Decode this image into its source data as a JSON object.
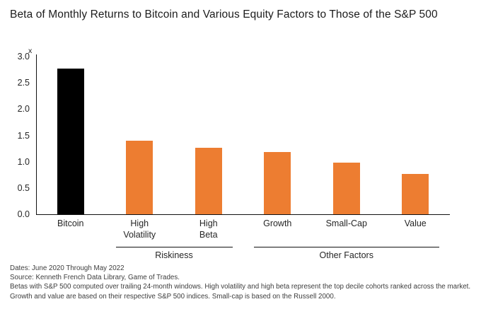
{
  "title": "Beta of Monthly Returns to Bitcoin and Various Equity Factors to Those of the S&P 500",
  "axis_top_label": "x",
  "footnotes": [
    "Dates: June 2020 Through May 2022",
    "Source: Kenneth French Data Library, Game of Trades.",
    "Betas with S&P 500 computed over trailing 24-month windows. High volatility and high beta represent the top decile cohorts ranked across the market. Growth and value are based on their respective S&P 500 indices. Small-cap is based on the Russell 2000."
  ],
  "colors": {
    "bitcoin_bar": "#000000",
    "factor_bar": "#ED7D31",
    "axis": "#111111",
    "text": "#262626",
    "footnote_text": "#3d3d3d"
  },
  "chart_data": {
    "type": "bar",
    "title": "Beta of Monthly Returns to Bitcoin and Various Equity Factors to Those of the S&P 500",
    "categories": [
      "Bitcoin",
      "High\nVolatility",
      "High\nBeta",
      "Growth",
      "Small-Cap",
      "Value"
    ],
    "values": [
      2.77,
      1.4,
      1.26,
      1.18,
      0.98,
      0.77
    ],
    "bar_colors": [
      "#000000",
      "#ED7D31",
      "#ED7D31",
      "#ED7D31",
      "#ED7D31",
      "#ED7D31"
    ],
    "xlabel": "",
    "ylabel": "",
    "ylim": [
      0,
      3.0
    ],
    "ytick_step": 0.5,
    "ytick_labels": [
      "0.0",
      "0.5",
      "1.0",
      "1.5",
      "2.0",
      "2.5",
      "3.0"
    ],
    "grid": false,
    "legend": "none",
    "groups": [
      {
        "label": "Riskiness",
        "start_index": 1,
        "end_index": 2
      },
      {
        "label": "Other Factors",
        "start_index": 3,
        "end_index": 5
      }
    ]
  }
}
